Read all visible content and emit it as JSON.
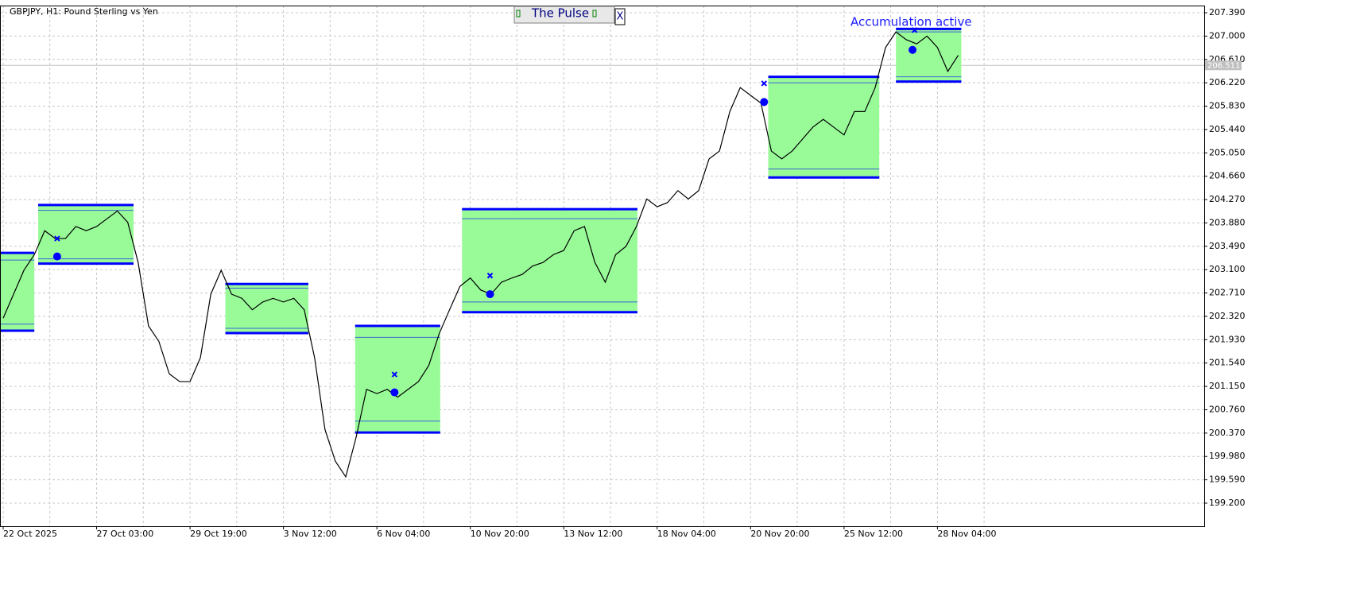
{
  "chart_data": {
    "type": "line",
    "title": "GBPJPY, H1:  Pound Sterling vs Yen",
    "annotation": "Accumulation active",
    "categories": [
      "22 Oct 2025",
      null,
      null,
      null,
      null,
      null,
      null,
      null,
      null,
      "27 Oct 03:00",
      null,
      null,
      null,
      null,
      null,
      null,
      null,
      null,
      "29 Oct 19:00",
      null,
      null,
      null,
      null,
      null,
      null,
      null,
      null,
      "3 Nov 12:00",
      null,
      null,
      null,
      null,
      null,
      null,
      null,
      null,
      "6 Nov 04:00",
      null,
      null,
      null,
      null,
      null,
      null,
      null,
      null,
      "10 Nov 20:00",
      null,
      null,
      null,
      null,
      null,
      null,
      null,
      null,
      "13 Nov 12:00",
      null,
      null,
      null,
      null,
      null,
      null,
      null,
      null,
      "18 Nov 04:00",
      null,
      null,
      null,
      null,
      null,
      null,
      null,
      null,
      "20 Nov 20:00",
      null,
      null,
      null,
      null,
      null,
      null,
      null,
      null,
      "25 Nov 12:00",
      null,
      null,
      null,
      null,
      null,
      null,
      null,
      null,
      "28 Nov 04:00",
      null,
      null
    ],
    "values": [
      202.29,
      202.69,
      203.09,
      203.35,
      203.75,
      203.62,
      203.62,
      203.82,
      203.75,
      203.82,
      203.95,
      204.08,
      203.89,
      203.22,
      202.16,
      201.9,
      201.36,
      201.23,
      201.23,
      201.63,
      202.69,
      203.09,
      202.69,
      202.62,
      202.43,
      202.56,
      202.62,
      202.56,
      202.62,
      202.43,
      201.63,
      200.43,
      199.9,
      199.64,
      200.3,
      201.1,
      201.03,
      201.1,
      200.97,
      201.1,
      201.23,
      201.5,
      202.03,
      202.43,
      202.82,
      202.96,
      202.76,
      202.69,
      202.89,
      202.96,
      203.02,
      203.16,
      203.22,
      203.35,
      203.42,
      203.75,
      203.82,
      203.22,
      202.89,
      203.35,
      203.49,
      203.82,
      204.28,
      204.15,
      204.22,
      204.42,
      204.28,
      204.42,
      204.95,
      205.08,
      205.74,
      206.14,
      206.01,
      205.88,
      205.08,
      204.95,
      205.08,
      205.28,
      205.48,
      205.61,
      205.48,
      205.35,
      205.74,
      205.74,
      206.14,
      206.81,
      207.07,
      206.94,
      206.87,
      207.0,
      206.81,
      206.41,
      206.68
    ],
    "color": "#000000",
    "ylim": [
      198.815,
      207.51
    ],
    "yticks": [
      {
        "value": 207.39,
        "label": "207.390"
      },
      {
        "value": 207.0,
        "label": "207.000"
      },
      {
        "value": 206.61,
        "label": "206.610"
      },
      {
        "value": 206.22,
        "label": "206.220"
      },
      {
        "value": 205.83,
        "label": "205.830"
      },
      {
        "value": 205.44,
        "label": "205.440"
      },
      {
        "value": 205.05,
        "label": "205.050"
      },
      {
        "value": 204.66,
        "label": "204.660"
      },
      {
        "value": 204.27,
        "label": "204.270"
      },
      {
        "value": 203.88,
        "label": "203.880"
      },
      {
        "value": 203.49,
        "label": "203.490"
      },
      {
        "value": 203.1,
        "label": "203.100"
      },
      {
        "value": 202.71,
        "label": "202.710"
      },
      {
        "value": 202.32,
        "label": "202.320"
      },
      {
        "value": 201.93,
        "label": "201.930"
      },
      {
        "value": 201.54,
        "label": "201.540"
      },
      {
        "value": 201.15,
        "label": "201.150"
      },
      {
        "value": 200.76,
        "label": "200.760"
      },
      {
        "value": 200.37,
        "label": "200.370"
      },
      {
        "value": 199.98,
        "label": "199.980"
      },
      {
        "value": 199.59,
        "label": "199.590"
      },
      {
        "value": 199.2,
        "label": "199.200"
      }
    ],
    "grid": true,
    "current_price": 206.511,
    "zones": [
      {
        "from": -0.3,
        "to": 3.0,
        "high": 203.38,
        "low": 202.08,
        "inner_high": 203.26,
        "inner_low": 202.19
      },
      {
        "from": 3.37,
        "to": 12.56,
        "high": 204.18,
        "low": 203.2,
        "inner_high": 204.09,
        "inner_low": 203.28
      },
      {
        "from": 21.4,
        "to": 29.4,
        "high": 202.86,
        "low": 202.04,
        "inner_high": 202.79,
        "inner_low": 202.12
      },
      {
        "from": 33.9,
        "to": 42.1,
        "high": 202.16,
        "low": 200.38,
        "inner_high": 201.97,
        "inner_low": 200.57
      },
      {
        "from": 44.2,
        "to": 61.1,
        "high": 204.11,
        "low": 202.39,
        "inner_high": 203.95,
        "inner_low": 202.56
      },
      {
        "from": 73.7,
        "to": 84.4,
        "high": 206.32,
        "low": 204.64,
        "inner_high": 206.22,
        "inner_low": 204.78
      },
      {
        "from": 86.0,
        "to": 92.3,
        "high": 207.12,
        "low": 206.24,
        "inner_high": 207.07,
        "inner_low": 206.32
      }
    ],
    "zone_fill": "#98fb98",
    "zone_border": "#0000ff",
    "dots": {
      "x": [
        5.2,
        37.7,
        46.9,
        73.3,
        87.6
      ],
      "values": [
        203.32,
        201.05,
        202.69,
        205.9,
        206.77
      ]
    },
    "crosses": {
      "x": [
        5.2,
        37.7,
        46.9,
        73.3,
        87.8
      ],
      "values": [
        203.62,
        201.35,
        203.0,
        206.21,
        207.1
      ]
    }
  },
  "panel": {
    "title": "The Pulse",
    "close": "X"
  }
}
